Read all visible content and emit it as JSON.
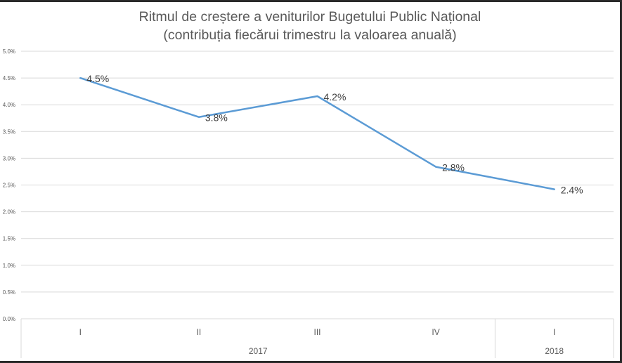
{
  "chart_data": {
    "type": "line",
    "title": "Ritmul de creștere a veniturilor Bugetului Public Național",
    "subtitle": "(contribuția fiecărui trimestru la valoarea anuală)",
    "categories": [
      "I",
      "II",
      "III",
      "IV",
      "I"
    ],
    "groups": [
      {
        "label": "2017",
        "count": 4
      },
      {
        "label": "2018",
        "count": 1
      }
    ],
    "series": [
      {
        "values": [
          4.5,
          3.77,
          4.16,
          2.84,
          2.42
        ],
        "data_labels": [
          "4.5%",
          "3.8%",
          "4.2%",
          "2.8%",
          "2.4%"
        ],
        "color": "#5b9bd5"
      }
    ],
    "ylim": [
      0,
      5
    ],
    "yticks": [
      0,
      0.5,
      1,
      1.5,
      2,
      2.5,
      3,
      3.5,
      4,
      4.5,
      5
    ],
    "ytick_labels": [
      "0.0%",
      "0.5%",
      "1.0%",
      "1.5%",
      "2.0%",
      "2.5%",
      "3.0%",
      "3.5%",
      "4.0%",
      "4.5%",
      "5.0%"
    ],
    "grid": true,
    "legend": false
  }
}
